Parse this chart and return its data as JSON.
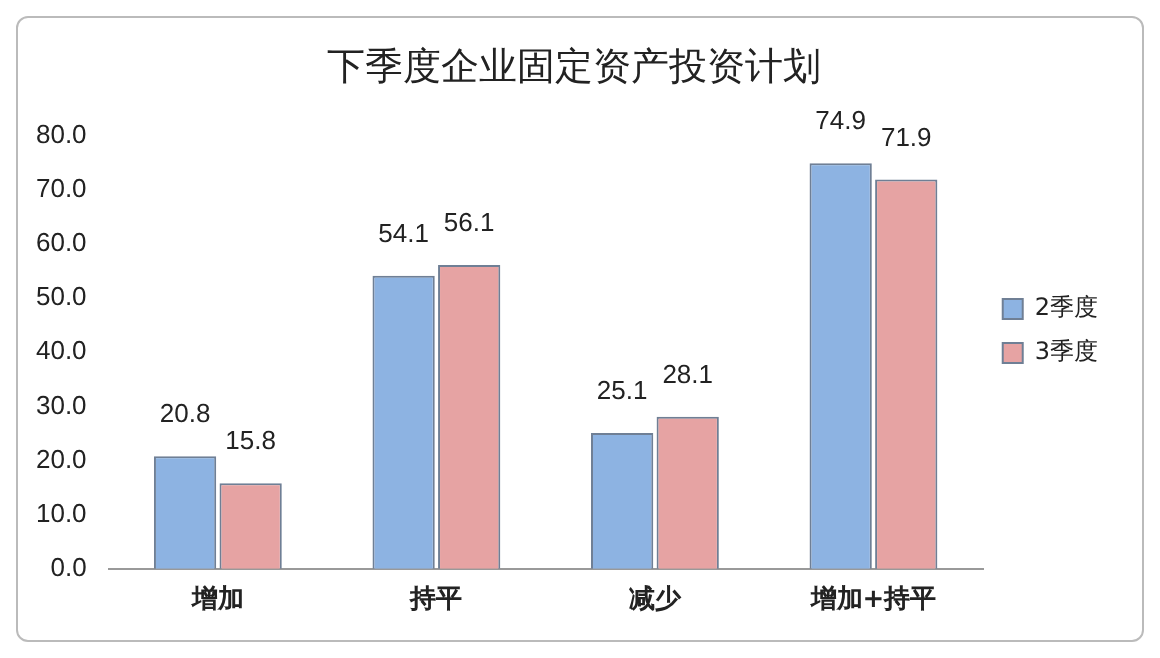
{
  "chart_data": {
    "type": "bar",
    "title": "下季度企业固定资产投资计划",
    "categories": [
      "增加",
      "持平",
      "减少",
      "增加+持平"
    ],
    "series": [
      {
        "name": "2季度",
        "color": "#8db3e2",
        "values": [
          20.8,
          54.1,
          25.1,
          74.9
        ]
      },
      {
        "name": "3季度",
        "color": "#e6a3a3",
        "values": [
          15.8,
          56.1,
          28.1,
          71.9
        ]
      }
    ],
    "ylim": [
      0,
      80
    ],
    "yticks": [
      {
        "value": 0,
        "label": "0.0"
      },
      {
        "value": 10,
        "label": "10.0"
      },
      {
        "value": 20,
        "label": "20.0"
      },
      {
        "value": 30,
        "label": "30.0"
      },
      {
        "value": 40,
        "label": "40.0"
      },
      {
        "value": 50,
        "label": "50.0"
      },
      {
        "value": 60,
        "label": "60.0"
      },
      {
        "value": 70,
        "label": "70.0"
      },
      {
        "value": 80,
        "label": "80.0"
      }
    ],
    "data_labels": true,
    "legend": "right",
    "grid": false
  }
}
